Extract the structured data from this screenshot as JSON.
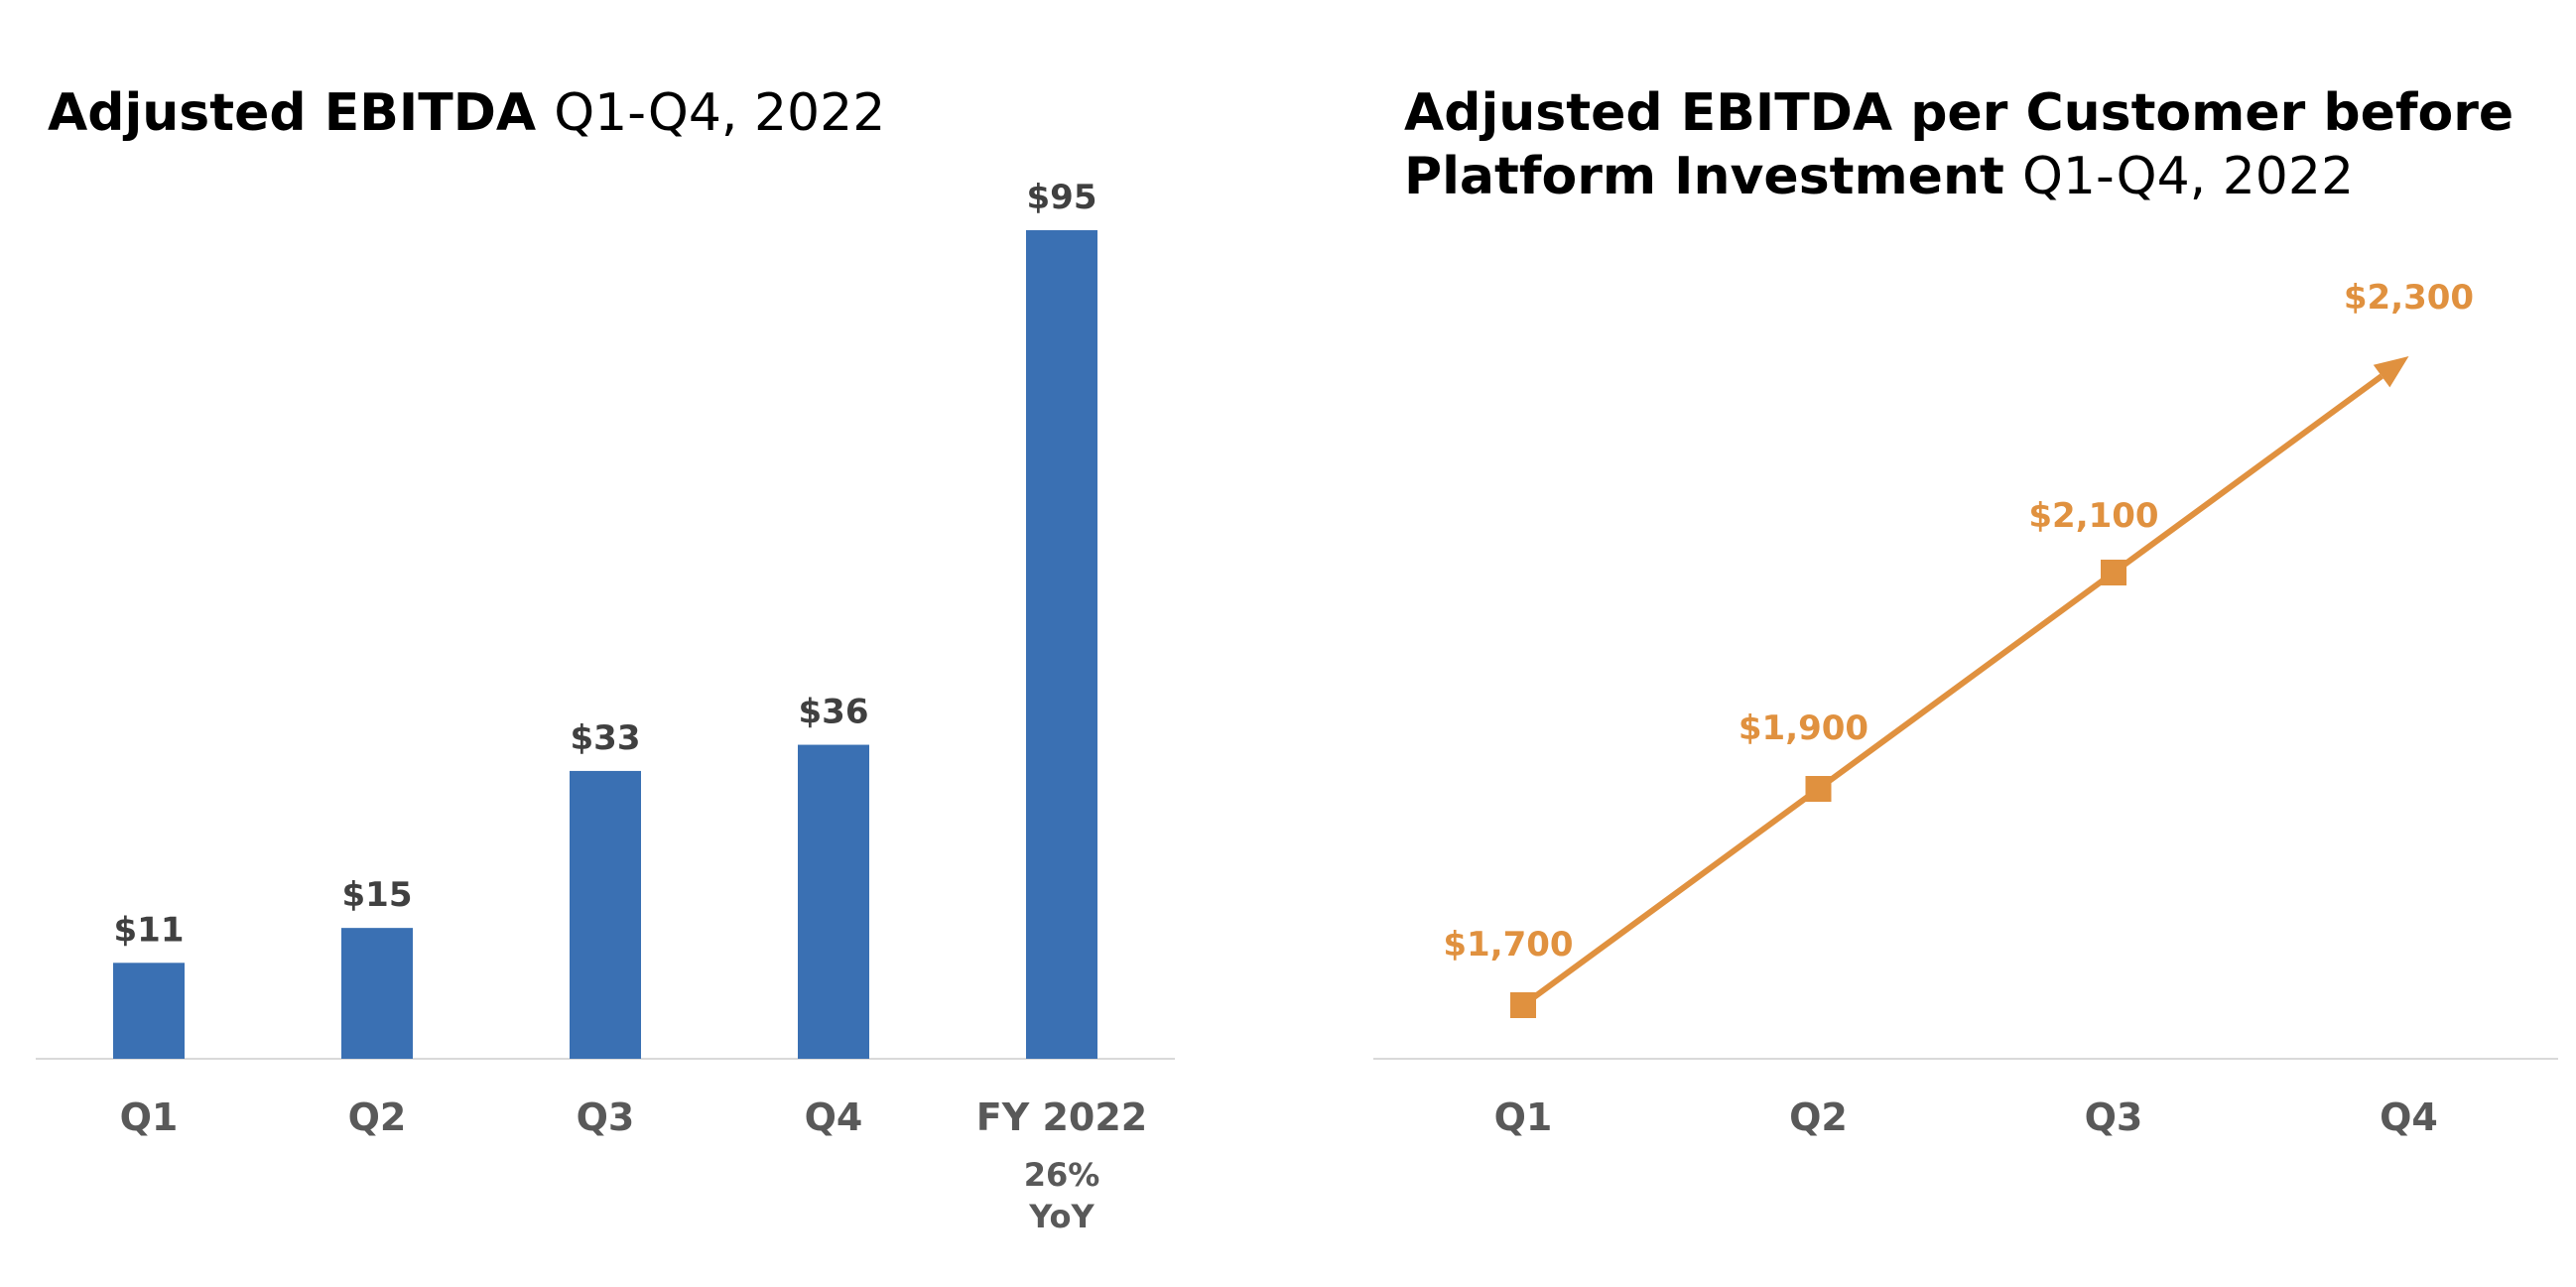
{
  "colors": {
    "bar": "#3A70B3",
    "line": "#E0913F",
    "axis": "#D9D9D9",
    "label": "#404040",
    "tick": "#595959"
  },
  "chart_data": [
    {
      "type": "bar",
      "title_bold": "Adjusted EBITDA",
      "title_light": "Q1-Q4, 2022",
      "categories": [
        "Q1",
        "Q2",
        "Q3",
        "Q4",
        "FY 2022"
      ],
      "values": [
        11,
        15,
        33,
        36,
        95
      ],
      "data_labels": [
        "$11",
        "$15",
        "$33",
        "$36",
        "$95"
      ],
      "ylim": [
        0,
        100
      ],
      "annotation": {
        "category": "FY 2022",
        "lines": [
          "26%",
          "YoY"
        ]
      },
      "xlabel": "",
      "ylabel": "",
      "grid": false
    },
    {
      "type": "line",
      "title_bold": "Adjusted EBITDA per Customer before Platform Investment",
      "title_light": "Q1-Q4, 2022",
      "categories": [
        "Q1",
        "Q2",
        "Q3",
        "Q4"
      ],
      "values": [
        1700,
        1900,
        2100,
        2300
      ],
      "data_labels": [
        "$1,700",
        "$1,900",
        "$2,100",
        "$2,300"
      ],
      "ylim": [
        1600,
        2400
      ],
      "last_point_marker": "arrow",
      "xlabel": "",
      "ylabel": "",
      "grid": false
    }
  ]
}
